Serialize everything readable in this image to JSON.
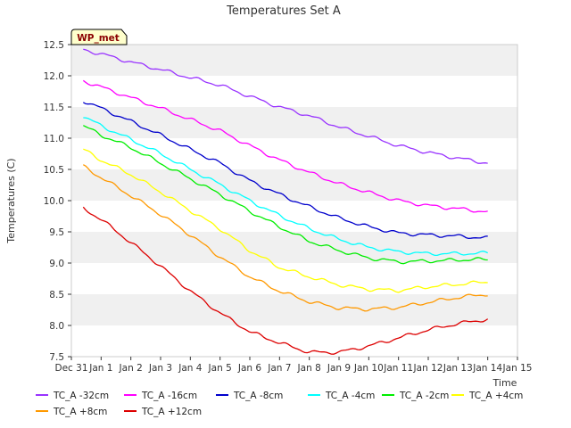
{
  "chart_data": {
    "type": "line",
    "title": "Temperatures Set A",
    "xlabel": "Time",
    "ylabel": "Temperatures (C)",
    "badge": "WP_met",
    "ylim": [
      7.5,
      12.5
    ],
    "yticks": [
      "7.5",
      "8.0",
      "8.5",
      "9.0",
      "9.5",
      "10.0",
      "10.5",
      "11.0",
      "11.5",
      "12.0",
      "12.5"
    ],
    "xlim": [
      0,
      15
    ],
    "xticks": [
      "Dec 31",
      "Jan 1",
      "Jan 2",
      "Jan 3",
      "Jan 4",
      "Jan 5",
      "Jan 6",
      "Jan 7",
      "Jan 8",
      "Jan 9",
      "Jan 10",
      "Jan 11",
      "Jan 12",
      "Jan 13",
      "Jan 14",
      "Jan 15"
    ],
    "grid": "horizontal bands",
    "legend": "bottom",
    "x": [
      0.4,
      1,
      2,
      3,
      4,
      5,
      6,
      7,
      8,
      9,
      10,
      11,
      12,
      13,
      14
    ],
    "series": [
      {
        "name": "TC_A -32cm",
        "color": "#9933ff",
        "values": [
          12.42,
          12.35,
          12.22,
          12.1,
          11.97,
          11.85,
          11.67,
          11.5,
          11.36,
          11.18,
          11.03,
          10.88,
          10.77,
          10.68,
          10.6
        ]
      },
      {
        "name": "TC_A -16cm",
        "color": "#ff00ff",
        "values": [
          11.92,
          11.82,
          11.65,
          11.48,
          11.3,
          11.12,
          10.88,
          10.65,
          10.45,
          10.27,
          10.13,
          10.0,
          9.92,
          9.87,
          9.82
        ]
      },
      {
        "name": "TC_A -8cm",
        "color": "#0000cc",
        "values": [
          11.6,
          11.48,
          11.27,
          11.05,
          10.82,
          10.6,
          10.32,
          10.1,
          9.9,
          9.72,
          9.58,
          9.48,
          9.45,
          9.43,
          9.4
        ]
      },
      {
        "name": "TC_A -4cm",
        "color": "#00ffff",
        "values": [
          11.35,
          11.2,
          10.98,
          10.75,
          10.5,
          10.26,
          10.0,
          9.76,
          9.55,
          9.38,
          9.25,
          9.18,
          9.15,
          9.15,
          9.16
        ]
      },
      {
        "name": "TC_A -2cm",
        "color": "#00ee00",
        "values": [
          11.2,
          11.05,
          10.85,
          10.6,
          10.35,
          10.1,
          9.83,
          9.58,
          9.35,
          9.2,
          9.08,
          9.02,
          9.03,
          9.05,
          9.06
        ]
      },
      {
        "name": "TC_A +4cm",
        "color": "#ffff00",
        "values": [
          10.82,
          10.65,
          10.42,
          10.14,
          9.84,
          9.55,
          9.2,
          8.93,
          8.78,
          8.65,
          8.58,
          8.56,
          8.62,
          8.66,
          8.7
        ]
      },
      {
        "name": "TC_A +8cm",
        "color": "#ff9900",
        "values": [
          10.55,
          10.37,
          10.08,
          9.78,
          9.45,
          9.1,
          8.78,
          8.55,
          8.38,
          8.28,
          8.26,
          8.29,
          8.37,
          8.45,
          8.5
        ]
      },
      {
        "name": "TC_A +12cm",
        "color": "#dd0000",
        "values": [
          9.88,
          9.7,
          9.33,
          8.95,
          8.55,
          8.2,
          7.9,
          7.72,
          7.57,
          7.57,
          7.67,
          7.8,
          7.93,
          8.03,
          8.1
        ]
      }
    ]
  }
}
